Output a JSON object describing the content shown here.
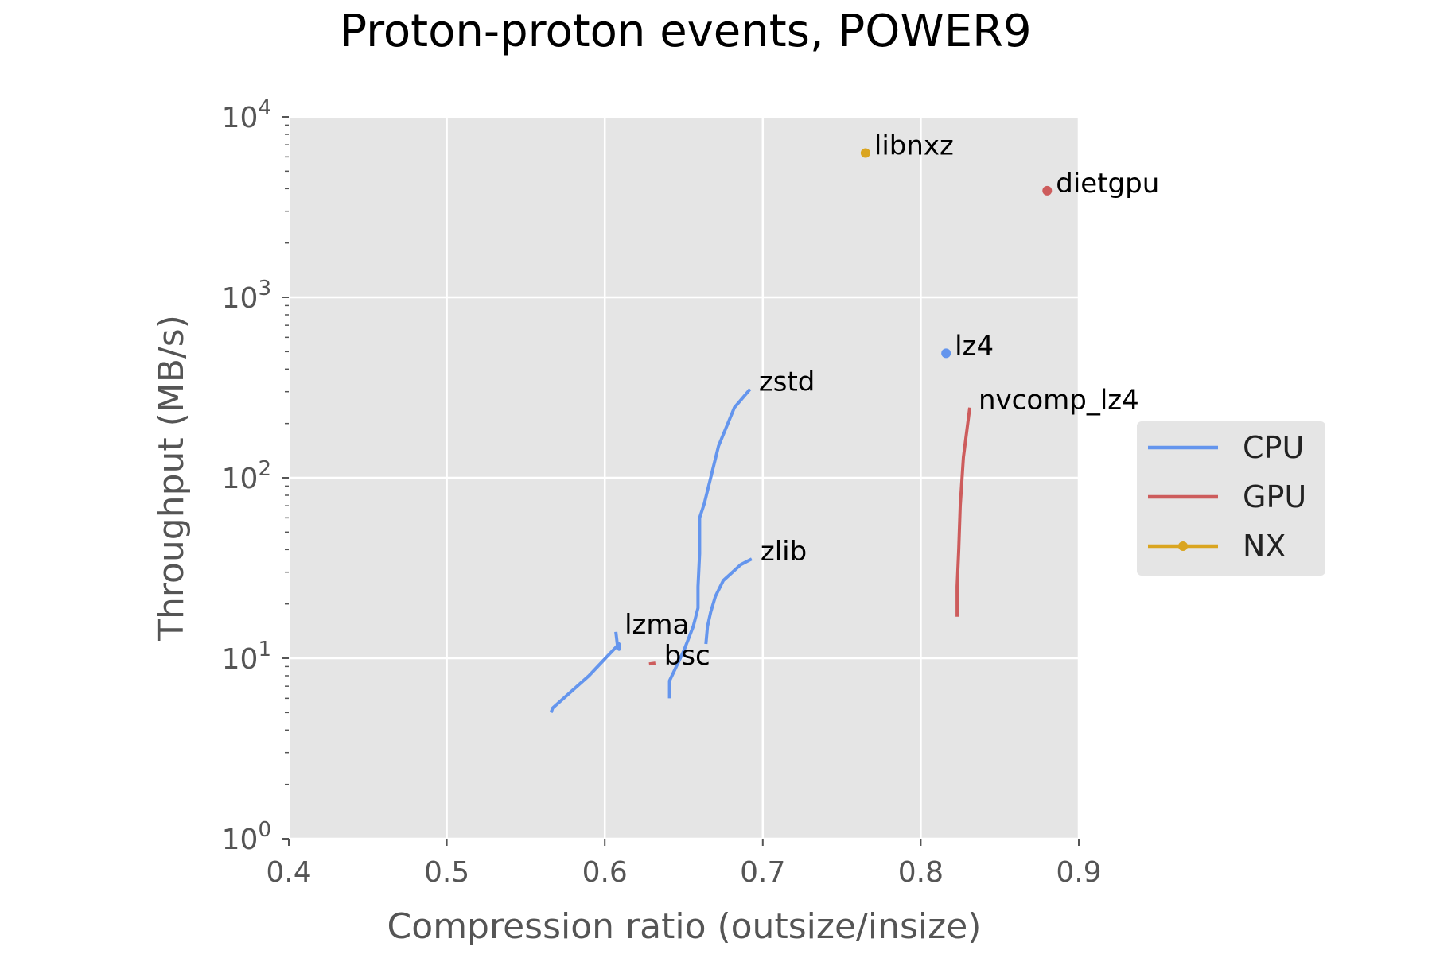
{
  "chart_data": {
    "type": "line",
    "title": "Proton-proton events, POWER9",
    "xlabel": "Compression ratio (outsize/insize)",
    "ylabel": "Throughput (MB/s)",
    "xlim": [
      0.4,
      0.9
    ],
    "ylim": [
      1,
      10000
    ],
    "yscale": "log",
    "grid": true,
    "x_ticks": [
      {
        "value": 0.4,
        "label": "0.4"
      },
      {
        "value": 0.5,
        "label": "0.5"
      },
      {
        "value": 0.6,
        "label": "0.6"
      },
      {
        "value": 0.7,
        "label": "0.7"
      },
      {
        "value": 0.8,
        "label": "0.8"
      },
      {
        "value": 0.9,
        "label": "0.9"
      }
    ],
    "y_ticks": [
      {
        "value": 1,
        "base": "10",
        "exp": "0"
      },
      {
        "value": 10,
        "base": "10",
        "exp": "1"
      },
      {
        "value": 100,
        "base": "10",
        "exp": "2"
      },
      {
        "value": 1000,
        "base": "10",
        "exp": "3"
      },
      {
        "value": 10000,
        "base": "10",
        "exp": "4"
      }
    ],
    "legend": {
      "placement": "right",
      "entries": [
        {
          "name": "CPU",
          "color": "#6495ed",
          "marker": false
        },
        {
          "name": "GPU",
          "color": "#cd5c5c",
          "marker": false
        },
        {
          "name": "NX",
          "color": "#daa520",
          "marker": true
        }
      ]
    },
    "series": [
      {
        "label": "zstd",
        "group": "CPU",
        "color": "#6495ed",
        "points": [
          [
            0.641,
            6.0
          ],
          [
            0.641,
            7.5
          ],
          [
            0.65,
            11.0
          ],
          [
            0.656,
            15.0
          ],
          [
            0.659,
            19.0
          ],
          [
            0.659,
            25.0
          ],
          [
            0.66,
            38.0
          ],
          [
            0.66,
            60.0
          ],
          [
            0.663,
            72.0
          ],
          [
            0.672,
            150.0
          ],
          [
            0.682,
            245.0
          ],
          [
            0.692,
            310.0
          ]
        ],
        "label_pos": [
          0.692,
          310.0
        ]
      },
      {
        "label": "zlib",
        "group": "CPU",
        "color": "#6495ed",
        "points": [
          [
            0.664,
            12.0
          ],
          [
            0.665,
            15.0
          ],
          [
            0.667,
            18.0
          ],
          [
            0.67,
            22.0
          ],
          [
            0.675,
            27.0
          ],
          [
            0.679,
            29.0
          ],
          [
            0.686,
            33.0
          ],
          [
            0.693,
            35.5
          ]
        ],
        "label_pos": [
          0.693,
          35.5
        ]
      },
      {
        "label": "lzma",
        "group": "CPU",
        "color": "#6495ed",
        "points": [
          [
            0.566,
            5.0
          ],
          [
            0.567,
            5.3
          ],
          [
            0.59,
            8.0
          ],
          [
            0.607,
            11.5
          ],
          [
            0.609,
            12.0
          ],
          [
            0.609,
            11.2
          ],
          [
            0.608,
            11.8
          ],
          [
            0.607,
            14.0
          ]
        ],
        "label_pos": [
          0.607,
          14.0
        ]
      },
      {
        "label": "bsc",
        "group": "GPU",
        "color": "#cd5c5c",
        "points": [
          [
            0.628,
            9.3
          ],
          [
            0.632,
            9.4
          ]
        ],
        "label_pos": [
          0.632,
          9.4
        ]
      },
      {
        "label": "nvcomp_lz4",
        "group": "GPU",
        "color": "#cd5c5c",
        "points": [
          [
            0.823,
            17.0
          ],
          [
            0.823,
            25.0
          ],
          [
            0.824,
            40.0
          ],
          [
            0.825,
            70.0
          ],
          [
            0.827,
            130.0
          ],
          [
            0.831,
            245.0
          ]
        ],
        "label_pos": [
          0.831,
          245.0
        ]
      },
      {
        "label": "lz4",
        "group": "CPU",
        "color": "#6495ed",
        "points": [
          [
            0.816,
            490.0
          ]
        ],
        "marker": true,
        "label_pos": [
          0.816,
          490.0
        ]
      },
      {
        "label": "libnxz",
        "group": "NX",
        "color": "#daa520",
        "points": [
          [
            0.765,
            6300.0
          ]
        ],
        "marker": true,
        "label_pos": [
          0.765,
          6300.0
        ]
      },
      {
        "label": "dietgpu",
        "group": "GPU",
        "color": "#cd5c5c",
        "points": [
          [
            0.88,
            3900.0
          ]
        ],
        "marker": true,
        "label_pos": [
          0.88,
          3900.0
        ]
      }
    ]
  }
}
